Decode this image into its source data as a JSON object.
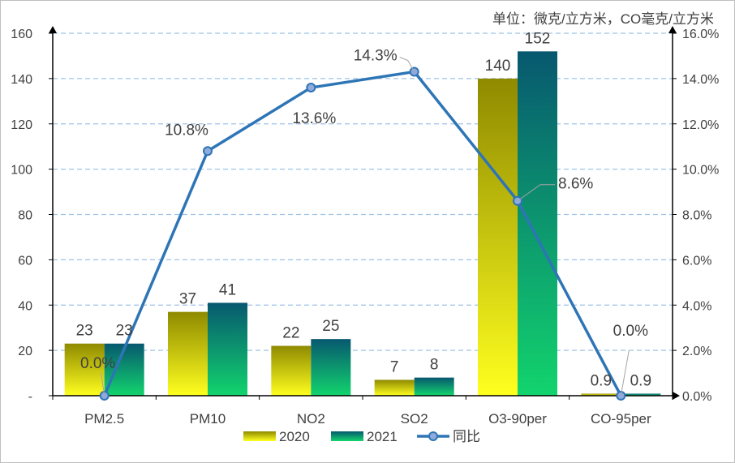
{
  "unit_note": "单位：微克/立方米，CO毫克/立方米",
  "colors": {
    "y2020_top": "#8f8a00",
    "y2020_bottom": "#ffff1f",
    "y2021_top": "#07586f",
    "y2021_bottom": "#12d46d",
    "line": "#2e75b6",
    "grid": "#9dc3e6",
    "axis": "#000000"
  },
  "chart_data": {
    "type": "bar",
    "categories": [
      "PM2.5",
      "PM10",
      "NO2",
      "SO2",
      "O3-90per",
      "CO-95per"
    ],
    "series": [
      {
        "name": "2020",
        "values": [
          23,
          37,
          22,
          7,
          140,
          0.9
        ],
        "labels": [
          "23",
          "37",
          "22",
          "7",
          "140",
          "0.9"
        ]
      },
      {
        "name": "2021",
        "values": [
          23,
          41,
          25,
          8,
          152,
          0.9
        ],
        "labels": [
          "23",
          "41",
          "25",
          "8",
          "152",
          "0.9"
        ]
      }
    ],
    "line_series": {
      "name": "同比",
      "axis": "secondary",
      "values": [
        0.0,
        10.8,
        13.6,
        14.3,
        8.6,
        0.0
      ],
      "labels": [
        "0.0%",
        "10.8%",
        "13.6%",
        "14.3%",
        "8.6%",
        "0.0%"
      ]
    },
    "left_axis": {
      "ylim": [
        0,
        160
      ],
      "ticks": [
        0,
        20,
        40,
        60,
        80,
        100,
        120,
        140,
        160
      ],
      "tick_labels": [
        "-",
        "20",
        "40",
        "60",
        "80",
        "100",
        "120",
        "140",
        "160"
      ]
    },
    "right_axis": {
      "ylim": [
        0,
        16
      ],
      "ticks": [
        0,
        2,
        4,
        6,
        8,
        10,
        12,
        14,
        16
      ],
      "tick_labels": [
        "0.0%",
        "2.0%",
        "4.0%",
        "6.0%",
        "8.0%",
        "10.0%",
        "12.0%",
        "14.0%",
        "16.0%"
      ]
    },
    "grid": true,
    "legend": {
      "position": "bottom",
      "entries": [
        "2020",
        "2021",
        "同比"
      ]
    }
  }
}
